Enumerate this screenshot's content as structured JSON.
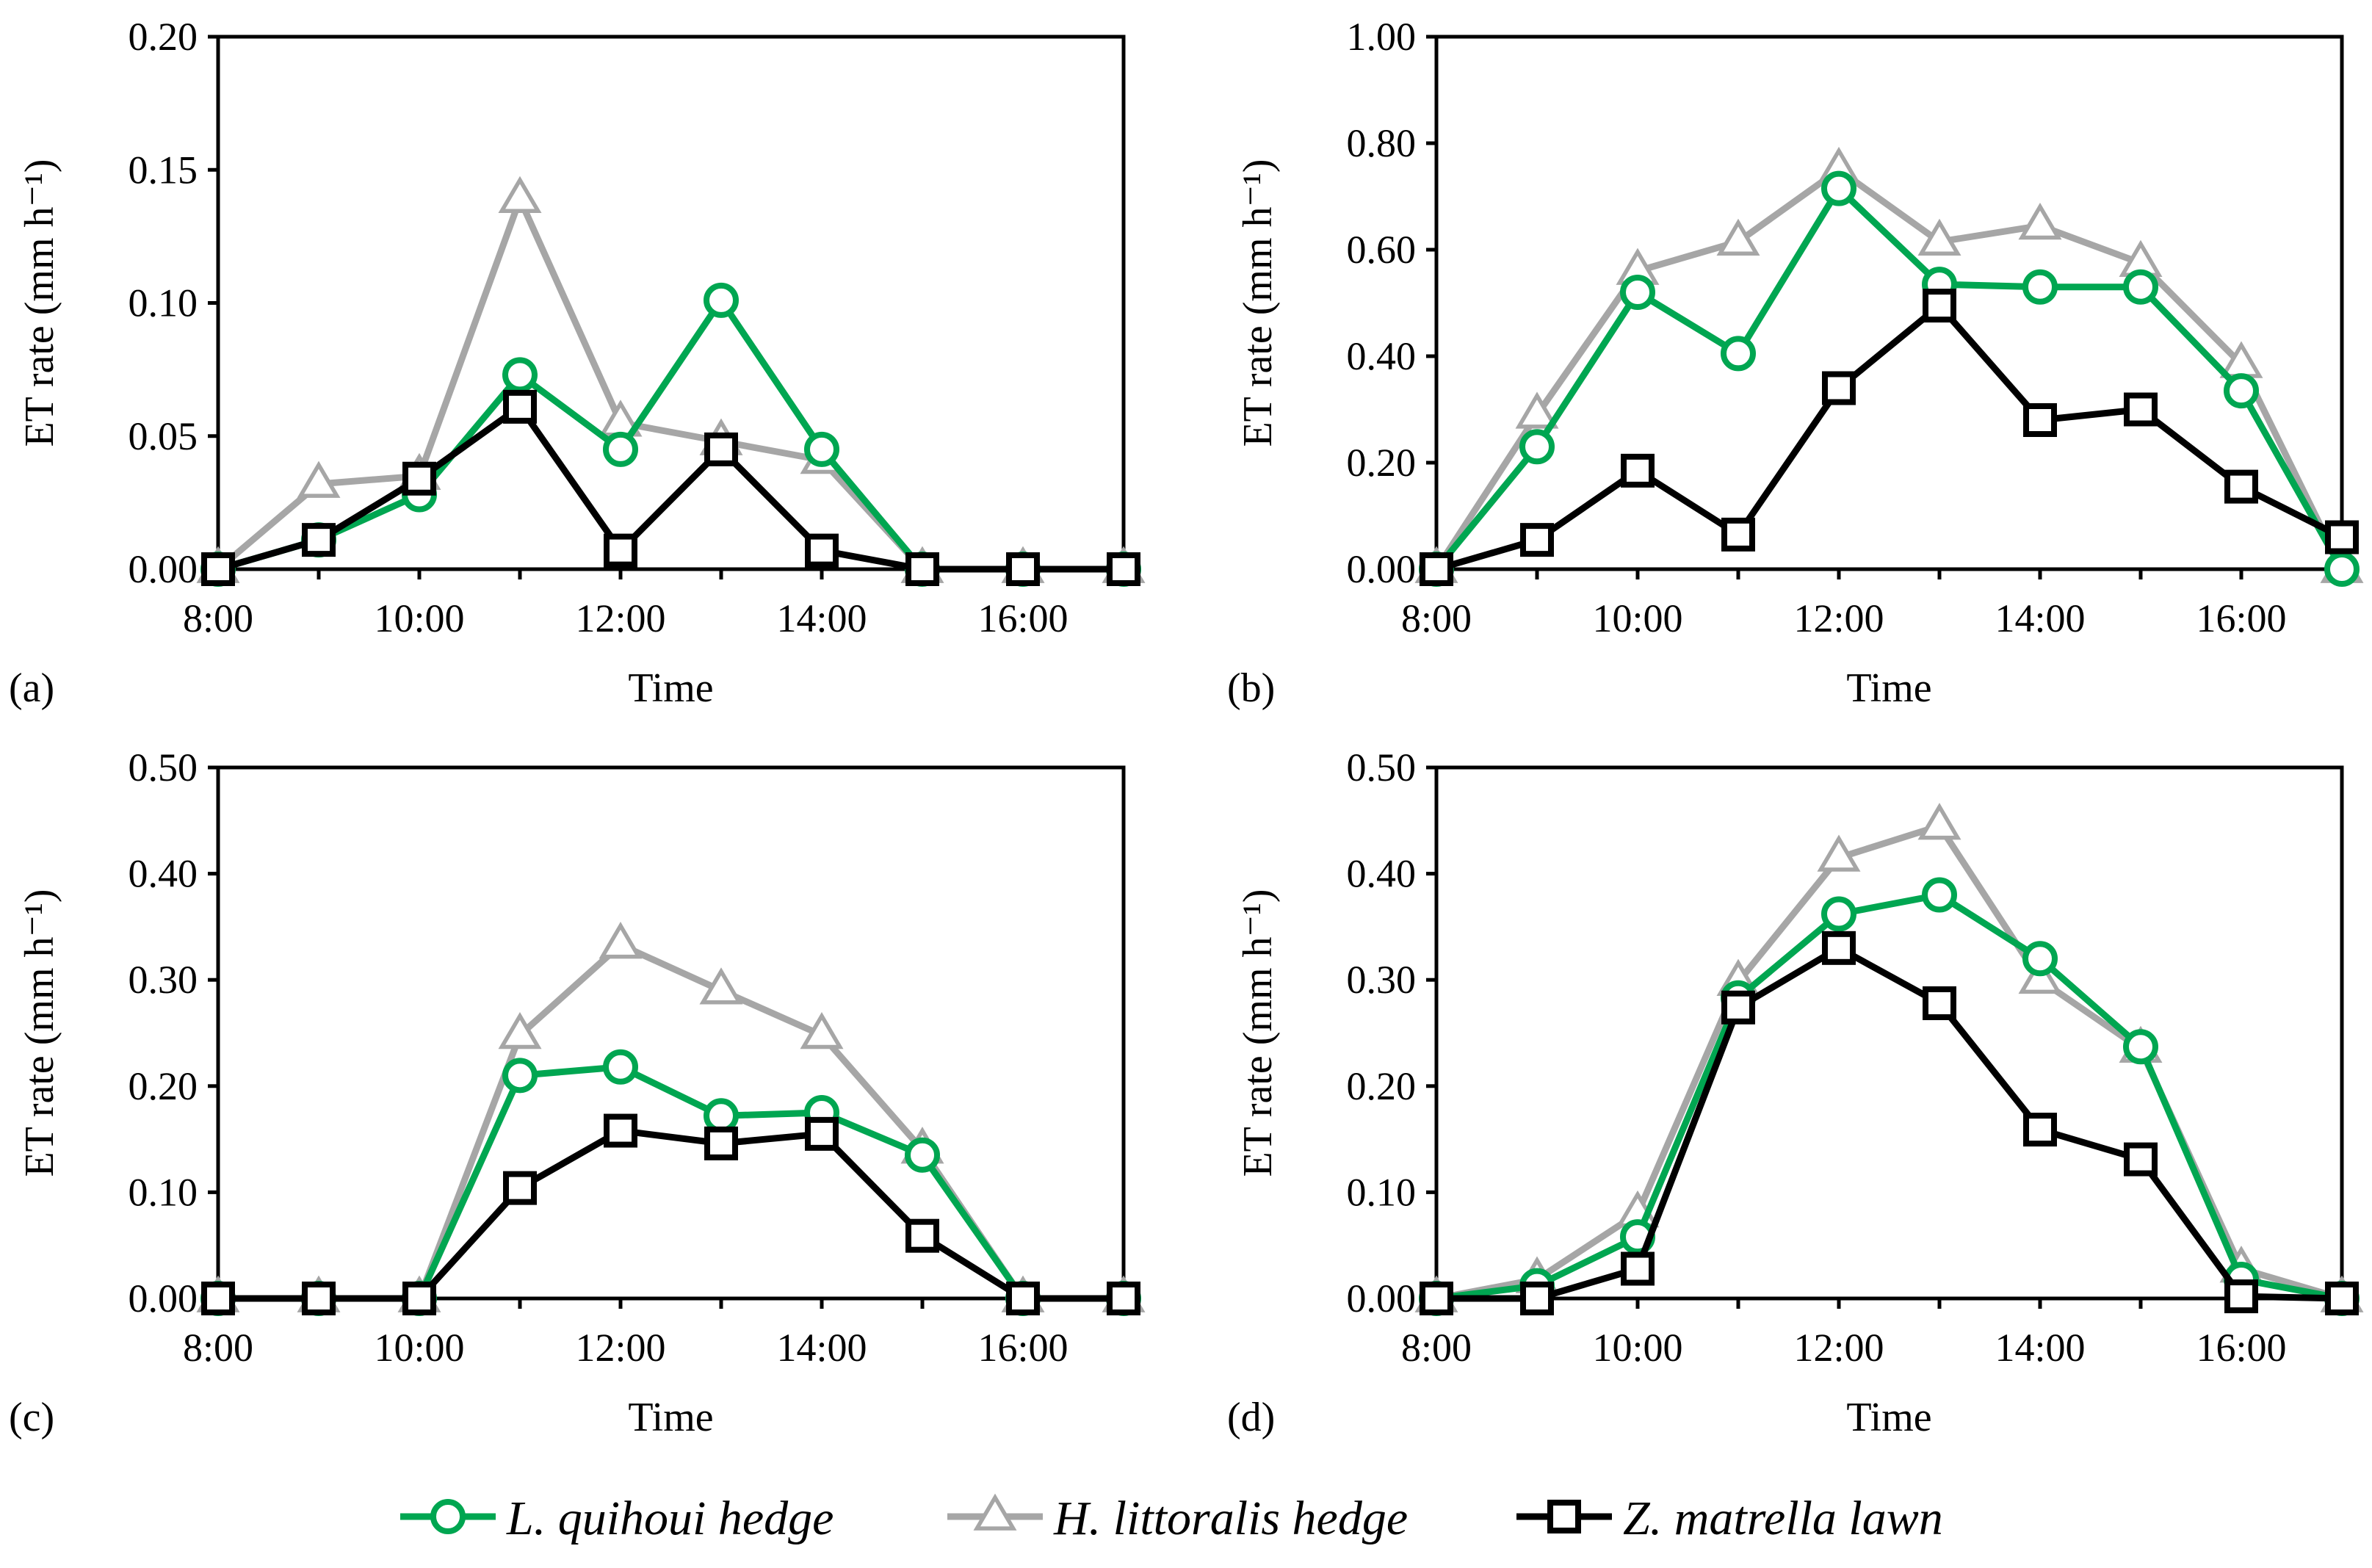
{
  "legend": {
    "items": [
      {
        "label": "L. quihoui hedge",
        "color": "#00a651",
        "marker": "circle"
      },
      {
        "label": "H. littoralis hedge",
        "color": "#a6a6a6",
        "marker": "triangle"
      },
      {
        "label": "Z. matrella lawn",
        "color": "#000000",
        "marker": "square"
      }
    ]
  },
  "chart_data": [
    {
      "type": "line",
      "panel_label": "(a)",
      "xlabel": "Time",
      "ylabel": "ET rate (mm h⁻¹)",
      "x": [
        8,
        9,
        10,
        11,
        12,
        13,
        14,
        15,
        16,
        17
      ],
      "xlim": [
        8,
        17
      ],
      "xticks": [
        8,
        10,
        12,
        14,
        16
      ],
      "xtick_labels": [
        "8:00",
        "10:00",
        "12:00",
        "14:00",
        "16:00"
      ],
      "ylim": [
        0,
        0.2
      ],
      "yticks": [
        0,
        0.05,
        0.1,
        0.15,
        0.2
      ],
      "ytick_labels": [
        "0.00",
        "0.05",
        "0.10",
        "0.15",
        "0.20"
      ],
      "series": [
        {
          "name": "L. quihoui hedge",
          "values": [
            0,
            0.011,
            0.028,
            0.073,
            0.045,
            0.101,
            0.045,
            0,
            0,
            0
          ]
        },
        {
          "name": "H. littoralis hedge",
          "values": [
            0,
            0.032,
            0.035,
            0.139,
            0.055,
            0.048,
            0.041,
            0,
            0,
            0
          ]
        },
        {
          "name": "Z. matrella lawn",
          "values": [
            0,
            0.011,
            0.034,
            0.061,
            0.007,
            0.045,
            0.007,
            0,
            0,
            0
          ]
        }
      ]
    },
    {
      "type": "line",
      "panel_label": "(b)",
      "xlabel": "Time",
      "ylabel": "ET rate (mm h⁻¹)",
      "x": [
        8,
        9,
        10,
        11,
        12,
        13,
        14,
        15,
        16,
        17
      ],
      "xlim": [
        8,
        17
      ],
      "xticks": [
        8,
        10,
        12,
        14,
        16
      ],
      "xtick_labels": [
        "8:00",
        "10:00",
        "12:00",
        "14:00",
        "16:00"
      ],
      "ylim": [
        0,
        1.0
      ],
      "yticks": [
        0,
        0.2,
        0.4,
        0.6,
        0.8,
        1.0
      ],
      "ytick_labels": [
        "0.00",
        "0.20",
        "0.40",
        "0.60",
        "0.80",
        "1.00"
      ],
      "series": [
        {
          "name": "L. quihoui hedge",
          "values": [
            0,
            0.23,
            0.52,
            0.405,
            0.715,
            0.535,
            0.53,
            0.53,
            0.335,
            0
          ]
        },
        {
          "name": "H. littoralis hedge",
          "values": [
            0,
            0.29,
            0.56,
            0.615,
            0.75,
            0.615,
            0.645,
            0.575,
            0.385,
            0
          ]
        },
        {
          "name": "Z. matrella lawn",
          "values": [
            0,
            0.055,
            0.185,
            0.065,
            0.34,
            0.495,
            0.28,
            0.3,
            0.155,
            0.06
          ]
        }
      ]
    },
    {
      "type": "line",
      "panel_label": "(c)",
      "xlabel": "Time",
      "ylabel": "ET rate (mm h⁻¹)",
      "x": [
        8,
        9,
        10,
        11,
        12,
        13,
        14,
        15,
        16,
        17
      ],
      "xlim": [
        8,
        17
      ],
      "xticks": [
        8,
        10,
        12,
        14,
        16
      ],
      "xtick_labels": [
        "8:00",
        "10:00",
        "12:00",
        "14:00",
        "16:00"
      ],
      "ylim": [
        0,
        0.5
      ],
      "yticks": [
        0,
        0.1,
        0.2,
        0.3,
        0.4,
        0.5
      ],
      "ytick_labels": [
        "0.00",
        "0.10",
        "0.20",
        "0.30",
        "0.40",
        "0.50"
      ],
      "series": [
        {
          "name": "L. quihoui hedge",
          "values": [
            0,
            0,
            0,
            0.21,
            0.218,
            0.172,
            0.175,
            0.135,
            0,
            0
          ]
        },
        {
          "name": "H. littoralis hedge",
          "values": [
            0,
            0,
            0,
            0.248,
            0.333,
            0.29,
            0.248,
            0.14,
            0,
            0
          ]
        },
        {
          "name": "Z. matrella lawn",
          "values": [
            0,
            0,
            0,
            0.104,
            0.158,
            0.146,
            0.155,
            0.059,
            0,
            0
          ]
        }
      ]
    },
    {
      "type": "line",
      "panel_label": "(d)",
      "xlabel": "Time",
      "ylabel": "ET rate (mm h⁻¹)",
      "x": [
        8,
        9,
        10,
        11,
        12,
        13,
        14,
        15,
        16,
        17
      ],
      "xlim": [
        8,
        17
      ],
      "xticks": [
        8,
        10,
        12,
        14,
        16
      ],
      "xtick_labels": [
        "8:00",
        "10:00",
        "12:00",
        "14:00",
        "16:00"
      ],
      "ylim": [
        0,
        0.5
      ],
      "yticks": [
        0,
        0.1,
        0.2,
        0.3,
        0.4,
        0.5
      ],
      "ytick_labels": [
        "0.00",
        "0.10",
        "0.20",
        "0.30",
        "0.40",
        "0.50"
      ],
      "series": [
        {
          "name": "L. quihoui hedge",
          "values": [
            0,
            0.012,
            0.058,
            0.283,
            0.362,
            0.38,
            0.32,
            0.237,
            0.018,
            0
          ]
        },
        {
          "name": "H. littoralis hedge",
          "values": [
            0,
            0.018,
            0.08,
            0.298,
            0.415,
            0.445,
            0.3,
            0.235,
            0.028,
            0
          ]
        },
        {
          "name": "Z. matrella lawn",
          "values": [
            0,
            0,
            0.028,
            0.274,
            0.33,
            0.278,
            0.159,
            0.131,
            0.002,
            0
          ]
        }
      ]
    }
  ]
}
